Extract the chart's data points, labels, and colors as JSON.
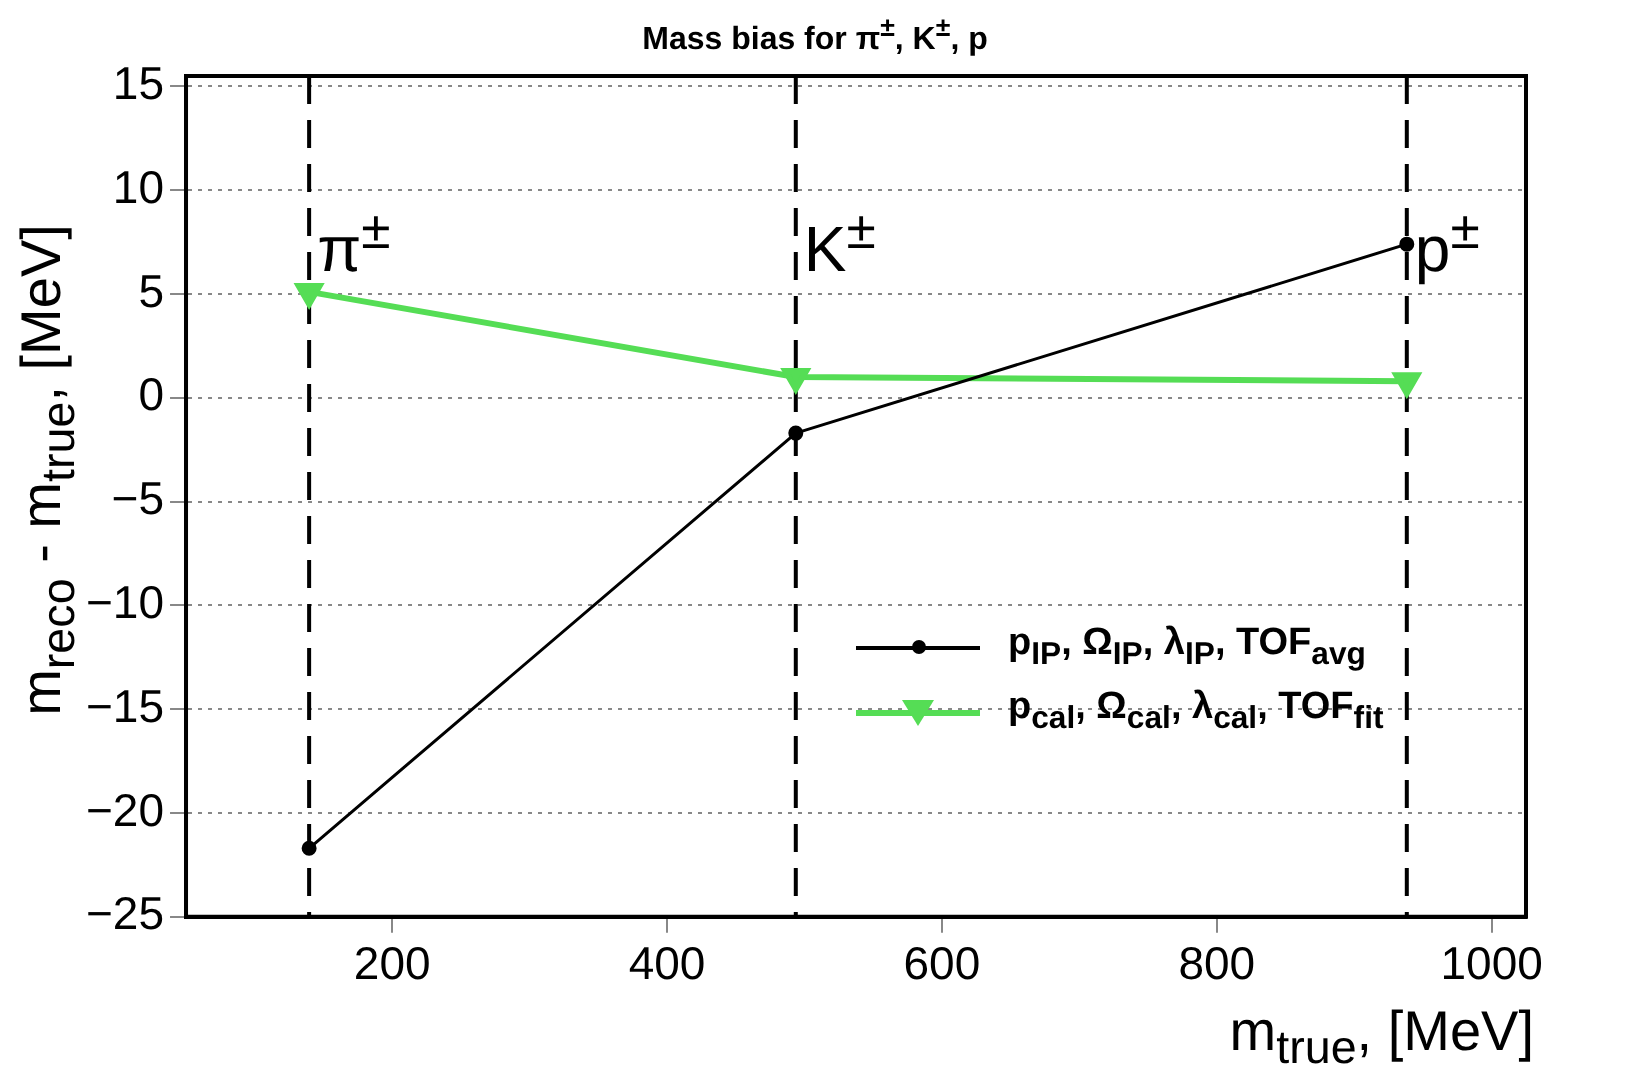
{
  "chart_data": {
    "type": "line",
    "title": "Mass bias for  π$^{±}$, K$^{±}$, p",
    "xlabel": "m$_{true}$, [MeV]",
    "ylabel": "m$_{reco}$ - m$_{true}$, [MeV]",
    "x": [
      139.57,
      493.68,
      938.27
    ],
    "series": [
      {
        "name": "p$_{IP}$, Ω$_{IP}$, λ$_{IP}$, TOF$_{avg}$",
        "color": "#000000",
        "marker": "circle",
        "values": [
          -21.7,
          -1.7,
          7.4
        ]
      },
      {
        "name": "p$_{cal}$, Ω$_{cal}$, λ$_{cal}$, TOF$_{fit}$",
        "color": "#55dd55",
        "marker": "triangle",
        "values": [
          5.1,
          1.0,
          0.8
        ]
      }
    ],
    "xlim": [
      50,
      1025
    ],
    "xticks": [
      200,
      400,
      600,
      800,
      1000
    ],
    "ylim": [
      -25,
      15.5
    ],
    "yticks": [
      -25,
      -20,
      -15,
      -10,
      -5,
      0,
      5,
      10,
      15
    ],
    "ref_lines": [
      {
        "axis": "x",
        "value": 139.57,
        "label": "π$^{±}$",
        "color": "#000000",
        "line_style": "dashed"
      },
      {
        "axis": "x",
        "value": 493.68,
        "label": "K$^{±}$",
        "color": "#000000",
        "line_style": "dashed"
      },
      {
        "axis": "x",
        "value": 938.27,
        "label": "p$^{±}$",
        "color": "#000000",
        "line_style": "dashed"
      }
    ],
    "grid": "y",
    "legend": "bottom right",
    "line_style": "solid"
  }
}
